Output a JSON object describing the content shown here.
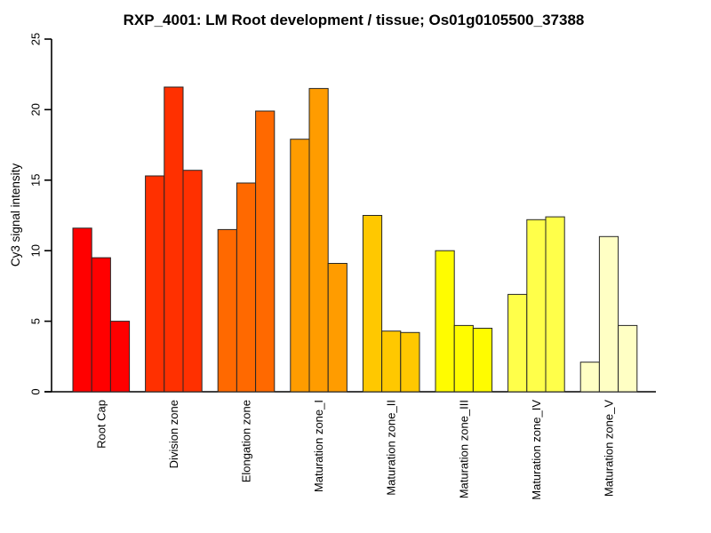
{
  "chart_data": {
    "type": "bar",
    "title": "RXP_4001: LM Root development / tissue; Os01g0105500_37388",
    "xlabel": "",
    "ylabel": "Cy3 signal intensity",
    "ylim": [
      0,
      25
    ],
    "yticks": [
      0,
      5,
      10,
      15,
      20,
      25
    ],
    "grid": false,
    "legend": "none",
    "bars_per_group": 3,
    "categories": [
      "Root Cap",
      "Division zone",
      "Elongation zone",
      "Maturation zone_I",
      "Maturation zone_II",
      "Maturation zone_III",
      "Maturation zone_IV",
      "Maturation zone_V"
    ],
    "values": [
      [
        11.6,
        9.5,
        5.0
      ],
      [
        15.3,
        21.6,
        15.7
      ],
      [
        11.5,
        14.8,
        19.9
      ],
      [
        17.9,
        21.5,
        9.1
      ],
      [
        12.5,
        4.3,
        4.2
      ],
      [
        10.0,
        4.7,
        4.5
      ],
      [
        6.9,
        12.2,
        12.4
      ],
      [
        2.1,
        11.0,
        4.7
      ]
    ],
    "group_colors": [
      "#FF0000",
      "#FF3000",
      "#FF6900",
      "#FF9C00",
      "#FFC800",
      "#FFFC00",
      "#FFFF4A",
      "#FFFFC4"
    ],
    "bar_border_color": "#262626",
    "axis_color": "#000000",
    "background_color": "#FFFFFF"
  }
}
